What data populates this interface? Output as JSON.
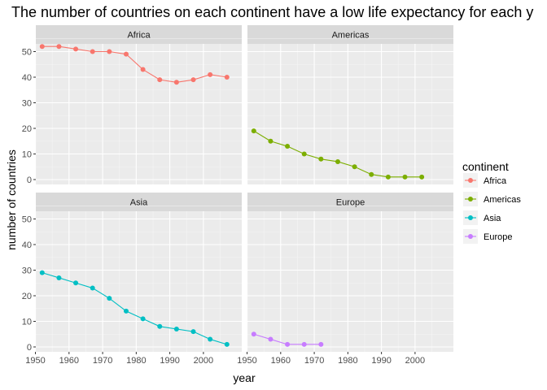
{
  "chart_data": {
    "type": "line",
    "title": "The number of countries on each continent have a low life expectancy for each y",
    "xlabel": "year",
    "ylabel": "number of countries",
    "xlim": [
      1950,
      2007
    ],
    "ylim": [
      0,
      55
    ],
    "x_ticks": [
      1950,
      1960,
      1970,
      1980,
      1990,
      2000
    ],
    "y_ticks": [
      0,
      10,
      20,
      30,
      40,
      50
    ],
    "grid": true,
    "facets": [
      "Africa",
      "Americas",
      "Asia",
      "Europe"
    ],
    "legend": {
      "title": "continent",
      "placement": "right",
      "entries": [
        "Africa",
        "Americas",
        "Asia",
        "Europe"
      ]
    },
    "series": [
      {
        "name": "Africa",
        "color": "#F8766D",
        "x": [
          1952,
          1957,
          1962,
          1967,
          1972,
          1977,
          1982,
          1987,
          1992,
          1997,
          2002,
          2007
        ],
        "values": [
          52,
          52,
          51,
          50,
          50,
          49,
          43,
          39,
          38,
          39,
          41,
          40
        ]
      },
      {
        "name": "Americas",
        "color": "#7CAE00",
        "x": [
          1952,
          1957,
          1962,
          1967,
          1972,
          1977,
          1982,
          1987,
          1992,
          1997,
          2002
        ],
        "values": [
          19,
          15,
          13,
          10,
          8,
          7,
          5,
          2,
          1,
          1,
          1
        ]
      },
      {
        "name": "Asia",
        "color": "#00BFC4",
        "x": [
          1952,
          1957,
          1962,
          1967,
          1972,
          1977,
          1982,
          1987,
          1992,
          1997,
          2002,
          2007
        ],
        "values": [
          29,
          27,
          25,
          23,
          19,
          14,
          11,
          8,
          7,
          6,
          3,
          1
        ]
      },
      {
        "name": "Europe",
        "color": "#C77CFF",
        "x": [
          1952,
          1957,
          1962,
          1967,
          1972
        ],
        "values": [
          5,
          3,
          1,
          1,
          1
        ]
      }
    ]
  }
}
